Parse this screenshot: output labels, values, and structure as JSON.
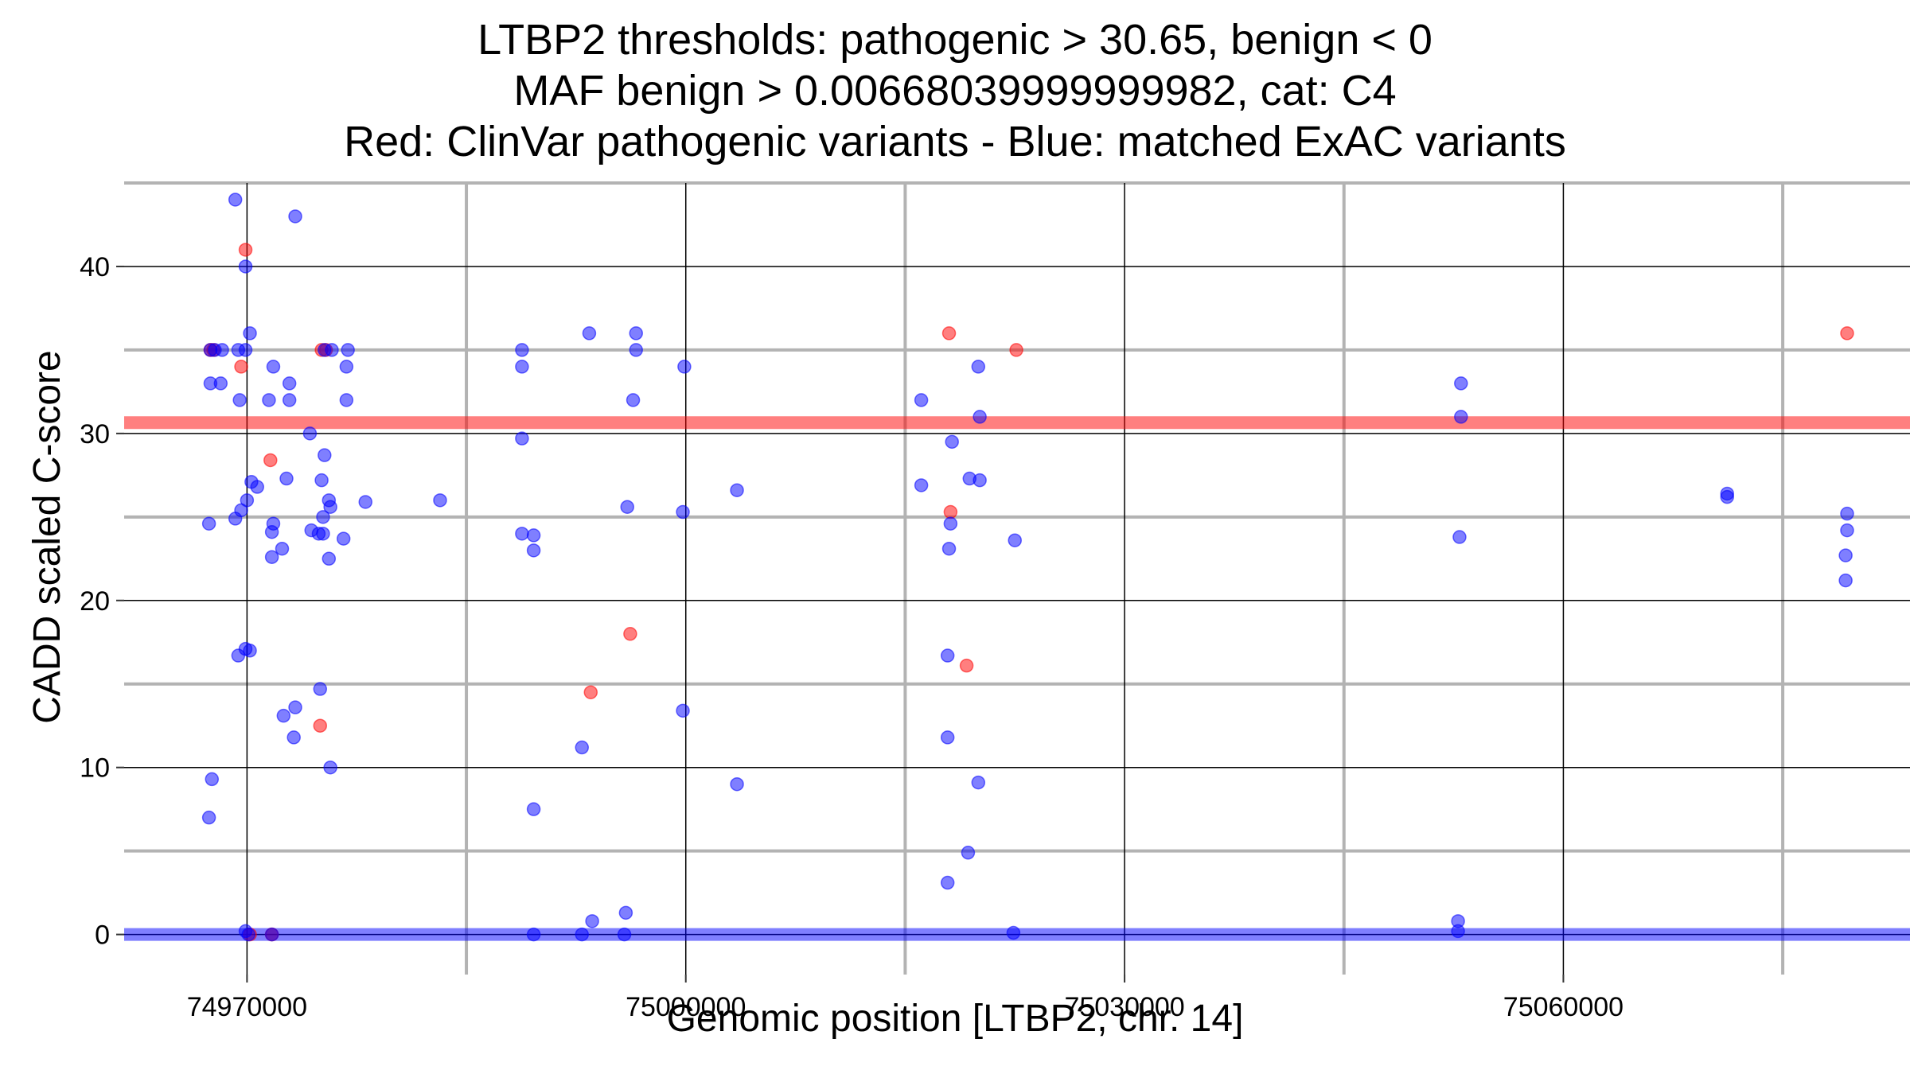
{
  "chart_data": {
    "type": "scatter",
    "title": [
      "LTBP2 thresholds: pathogenic > 30.65, benign < 0",
      "MAF benign > 0.00668039999999982, cat: C4",
      "Red: ClinVar pathogenic variants - Blue: matched ExAC variants"
    ],
    "xlabel": "Genomic position [LTBP2, chr. 14]",
    "ylabel": "CADD scaled C-score",
    "xlim": [
      74961600,
      75083700
    ],
    "ylim": [
      -2.4,
      45
    ],
    "xticks": [
      74970000,
      75000000,
      75030000,
      75060000
    ],
    "xtick_labels": [
      "74970000",
      "75000000",
      "75030000",
      "75060000"
    ],
    "yticks": [
      0,
      10,
      20,
      30,
      40
    ],
    "ytick_labels": [
      "0",
      "10",
      "20",
      "30",
      "40"
    ],
    "grid": true,
    "thresholds": [
      {
        "name": "pathogenic",
        "value": 30.65,
        "color": "#ff0000"
      },
      {
        "name": "benign",
        "value": 0,
        "color": "#0000ff"
      }
    ],
    "series": [
      {
        "name": "ClinVar pathogenic variants",
        "color": "#ff0000",
        "points": [
          [
            74967500,
            35
          ],
          [
            74967700,
            35
          ],
          [
            74969900,
            41
          ],
          [
            74969600,
            34
          ],
          [
            74971600,
            28.4
          ],
          [
            74975100,
            35
          ],
          [
            74975400,
            35
          ],
          [
            74975000,
            12.5
          ],
          [
            74971700,
            0
          ],
          [
            74970200,
            0
          ],
          [
            74993500,
            14.5
          ],
          [
            74996200,
            18
          ],
          [
            75018000,
            36
          ],
          [
            75022600,
            35
          ],
          [
            75018100,
            25.3
          ],
          [
            75019200,
            16.1
          ],
          [
            75079400,
            36
          ]
        ]
      },
      {
        "name": "matched ExAC variants",
        "color": "#0000ff",
        "points": [
          [
            74969200,
            44
          ],
          [
            74973300,
            43
          ],
          [
            74969900,
            40
          ],
          [
            74967500,
            35
          ],
          [
            74967800,
            35
          ],
          [
            74968300,
            35
          ],
          [
            74969400,
            35
          ],
          [
            74969900,
            35
          ],
          [
            74970200,
            36
          ],
          [
            74975300,
            35
          ],
          [
            74975800,
            35
          ],
          [
            74976900,
            35
          ],
          [
            74967500,
            33
          ],
          [
            74968200,
            33
          ],
          [
            74971800,
            34
          ],
          [
            74969500,
            32
          ],
          [
            74971500,
            32
          ],
          [
            74972900,
            33
          ],
          [
            74972900,
            32
          ],
          [
            74976800,
            34
          ],
          [
            74976800,
            32
          ],
          [
            74974300,
            30
          ],
          [
            74975300,
            28.7
          ],
          [
            74972700,
            27.3
          ],
          [
            74970300,
            27.1
          ],
          [
            74970700,
            26.8
          ],
          [
            74970000,
            26
          ],
          [
            74975100,
            27.2
          ],
          [
            74975600,
            26
          ],
          [
            74975700,
            25.6
          ],
          [
            74978100,
            25.9
          ],
          [
            74969600,
            25.4
          ],
          [
            74969200,
            24.9
          ],
          [
            74967400,
            24.6
          ],
          [
            74971800,
            24.6
          ],
          [
            74971700,
            24.1
          ],
          [
            74974400,
            24.2
          ],
          [
            74974900,
            24
          ],
          [
            74975200,
            24
          ],
          [
            74975200,
            25
          ],
          [
            74976600,
            23.7
          ],
          [
            74972400,
            23.1
          ],
          [
            74971700,
            22.6
          ],
          [
            74975600,
            22.5
          ],
          [
            74969400,
            16.7
          ],
          [
            74969900,
            17.1
          ],
          [
            74970200,
            17
          ],
          [
            74975000,
            14.7
          ],
          [
            74973300,
            13.6
          ],
          [
            74972500,
            13.1
          ],
          [
            74973200,
            11.8
          ],
          [
            74975700,
            10
          ],
          [
            74967600,
            9.3
          ],
          [
            74967400,
            7
          ],
          [
            74969900,
            0.2
          ],
          [
            74970100,
            0
          ],
          [
            74971700,
            0
          ],
          [
            74983200,
            26
          ],
          [
            74988800,
            35
          ],
          [
            74988800,
            34
          ],
          [
            74988800,
            29.7
          ],
          [
            74988800,
            24
          ],
          [
            74989600,
            23.9
          ],
          [
            74989600,
            23
          ],
          [
            74989600,
            7.5
          ],
          [
            74989600,
            0
          ],
          [
            74993400,
            36
          ],
          [
            74996600,
            36
          ],
          [
            74996600,
            35
          ],
          [
            74996400,
            32
          ],
          [
            74996000,
            25.6
          ],
          [
            74992900,
            11.2
          ],
          [
            74993600,
            0.8
          ],
          [
            74992900,
            0
          ],
          [
            74995900,
            1.3
          ],
          [
            74995800,
            0
          ],
          [
            74999900,
            34
          ],
          [
            74999800,
            25.3
          ],
          [
            74999800,
            13.4
          ],
          [
            75003500,
            26.6
          ],
          [
            75003500,
            9
          ],
          [
            75016100,
            32
          ],
          [
            75016100,
            26.9
          ],
          [
            75018200,
            29.5
          ],
          [
            75018100,
            24.6
          ],
          [
            75018000,
            23.1
          ],
          [
            75019400,
            27.3
          ],
          [
            75020100,
            27.2
          ],
          [
            75020000,
            34
          ],
          [
            75020100,
            31
          ],
          [
            75022500,
            23.6
          ],
          [
            75017900,
            16.7
          ],
          [
            75017900,
            11.8
          ],
          [
            75020000,
            9.1
          ],
          [
            75019300,
            4.9
          ],
          [
            75017900,
            3.1
          ],
          [
            75022400,
            0.1
          ],
          [
            75053000,
            33
          ],
          [
            75053000,
            31
          ],
          [
            75052900,
            23.8
          ],
          [
            75052800,
            0.8
          ],
          [
            75052800,
            0.2
          ],
          [
            75071200,
            26.4
          ],
          [
            75071200,
            26.2
          ],
          [
            75079400,
            25.2
          ],
          [
            75079400,
            24.2
          ],
          [
            75079300,
            22.7
          ],
          [
            75079300,
            21.2
          ]
        ]
      }
    ]
  }
}
